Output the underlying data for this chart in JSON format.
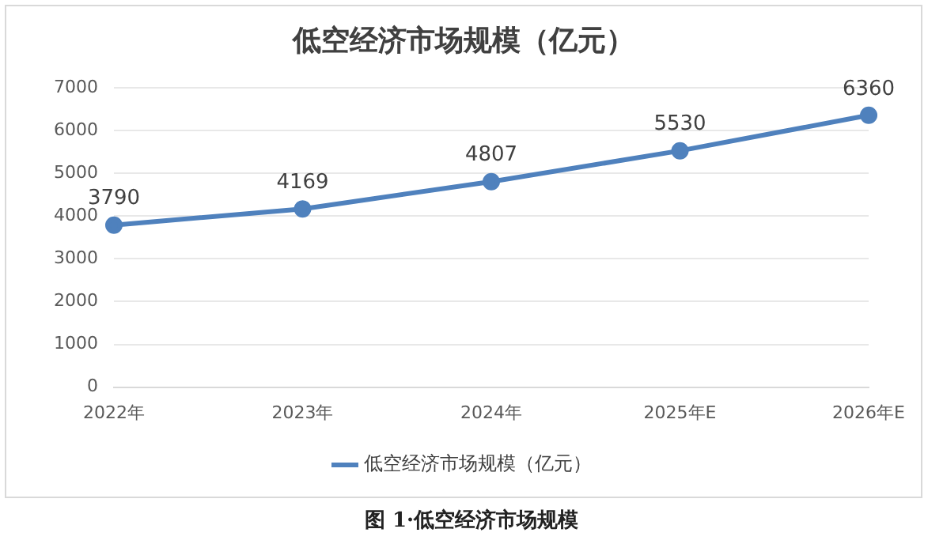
{
  "chart_data": {
    "type": "line",
    "title": "低空经济市场规模（亿元）",
    "categories": [
      "2022年",
      "2023年",
      "2024年",
      "2025年E",
      "2026年E"
    ],
    "series": [
      {
        "name": "低空经济市场规模（亿元）",
        "color": "#4f81bd",
        "values": [
          3790,
          4169,
          4807,
          5530,
          6360
        ]
      }
    ],
    "ylim": [
      0,
      7000
    ],
    "yticks": [
      0,
      1000,
      2000,
      3000,
      4000,
      5000,
      6000,
      7000
    ],
    "grid": "y",
    "legend": "bottom",
    "marker": "circle",
    "line_style": "solid",
    "data_labels": true,
    "annotations": [
      "图 1·低空经济市场规模"
    ]
  }
}
